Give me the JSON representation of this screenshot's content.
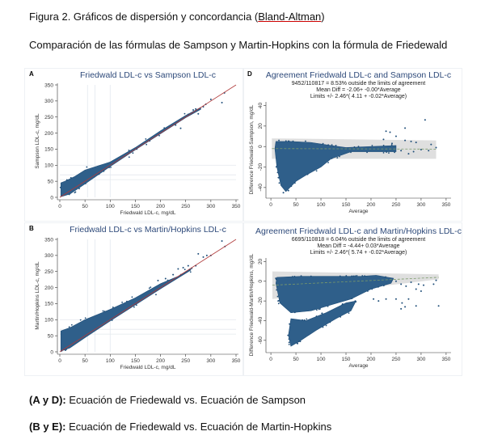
{
  "caption": {
    "figure_title_prefix": "Figura 2. Gráficos de dispersión y concordancia (",
    "figure_title_link": "Bland-Altman",
    "figure_title_suffix": ")",
    "subtitle": "Comparación de las fórmulas de Sampson y Martin-Hopkins con la fórmula de Friedewald"
  },
  "footer": {
    "line1_bold": "(A y D):",
    "line1_text": " Ecuación de Friedewald vs. Ecuación de Sampson",
    "line2_bold": " (B y E):",
    "line2_text": " Ecuación de Friedewald vs. Ecuación de Martin-Hopkins"
  },
  "colors": {
    "points": "#1f4e79",
    "cloud": "#2f5f8a",
    "title": "#2e4a7a",
    "identity_line": "#b03a3a",
    "band": "#d9d9d9",
    "mean_line": "#7a9a6a"
  },
  "chart_data": [
    {
      "id": "A",
      "type": "scatter",
      "panel_label": "A",
      "title": "Friedwald LDL-c vs Sampson LDL-c",
      "subtitle_lines": [],
      "xlabel": "Friedwald LDL-c, mg/dL",
      "ylabel": "Sampson LDL-c, mg/dL",
      "xlim": [
        0,
        350
      ],
      "ylim": [
        0,
        350
      ],
      "xticks": [
        0,
        50,
        100,
        150,
        200,
        250,
        300,
        350
      ],
      "yticks": [
        0,
        50,
        100,
        150,
        200,
        250,
        300,
        350
      ],
      "ref_x": [
        55,
        70,
        100
      ],
      "ref_y": [
        55,
        70,
        100
      ],
      "identity_line": [
        [
          0,
          0
        ],
        [
          350,
          350
        ]
      ],
      "cloud": [
        [
          [
            2,
            2
          ],
          [
            2,
            45
          ],
          [
            10,
            50
          ],
          [
            30,
            65
          ],
          [
            50,
            85
          ],
          [
            80,
            100
          ],
          [
            100,
            110
          ],
          [
            150,
            155
          ],
          [
            200,
            207
          ],
          [
            250,
            255
          ],
          [
            280,
            280
          ],
          [
            280,
            274
          ],
          [
            250,
            248
          ],
          [
            200,
            198
          ],
          [
            150,
            148
          ],
          [
            100,
            96
          ],
          [
            50,
            42
          ],
          [
            20,
            10
          ]
        ]
      ],
      "points": [
        [
          230,
          225
        ],
        [
          240,
          215
        ],
        [
          255,
          258
        ],
        [
          262,
          262
        ],
        [
          270,
          275
        ],
        [
          275,
          260
        ],
        [
          290,
          290
        ],
        [
          300,
          305
        ],
        [
          322,
          295
        ],
        [
          327,
          325
        ],
        [
          265,
          272
        ],
        [
          285,
          282
        ]
      ]
    },
    {
      "id": "D",
      "type": "scatter",
      "panel_label": "D",
      "title": "Agreement Friedwald LDL-c and Sampson LDL-c",
      "subtitle_lines": [
        "9452/110817 =   8.53% outside the limits of agreement",
        "Mean Diff = -2.06+ -0.00*Average",
        "Limits +/- 2.46*( 4.11 + -0.02*Average)"
      ],
      "xlabel": "Average",
      "ylabel": "Difference Friedwald-Sampson, mg/dL",
      "xlim": [
        -5,
        355
      ],
      "ylim": [
        -48,
        42
      ],
      "xticks": [
        0,
        50,
        100,
        150,
        200,
        250,
        300,
        350
      ],
      "yticks": [
        -40,
        -20,
        0,
        20,
        40
      ],
      "band": [
        [
          2,
          8
        ],
        [
          330,
          6
        ],
        [
          330,
          -12
        ],
        [
          2,
          -12
        ]
      ],
      "mean_line": [
        [
          2,
          -2
        ],
        [
          330,
          -2.5
        ]
      ],
      "cloud": [
        [
          [
            8,
            -2
          ],
          [
            10,
            5
          ],
          [
            40,
            5
          ],
          [
            80,
            4
          ],
          [
            120,
            1
          ],
          [
            150,
            -1
          ],
          [
            200,
            0
          ],
          [
            250,
            1
          ],
          [
            250,
            -5
          ],
          [
            200,
            -5
          ],
          [
            160,
            -5
          ],
          [
            120,
            -12
          ],
          [
            100,
            -20
          ],
          [
            70,
            -28
          ],
          [
            50,
            -34
          ],
          [
            30,
            -44
          ],
          [
            20,
            -38
          ],
          [
            12,
            -20
          ]
        ]
      ],
      "points": [
        [
          230,
          15
        ],
        [
          238,
          14
        ],
        [
          250,
          10
        ],
        [
          268,
          18
        ],
        [
          308,
          26
        ],
        [
          268,
          6
        ],
        [
          280,
          5
        ],
        [
          290,
          4
        ],
        [
          300,
          -3
        ],
        [
          315,
          -4
        ],
        [
          320,
          2
        ],
        [
          330,
          -1
        ],
        [
          260,
          -4
        ],
        [
          275,
          -7
        ],
        [
          285,
          -5
        ],
        [
          225,
          7
        ],
        [
          242,
          3
        ],
        [
          25,
          -45
        ],
        [
          35,
          -43
        ]
      ]
    },
    {
      "id": "B",
      "type": "scatter",
      "panel_label": "B",
      "title": "Friedwald LDL-c vs Martin/Hopkins LDL-c",
      "subtitle_lines": [],
      "xlabel": "Friedwald LDL-c, mg/dL",
      "ylabel": "Martin/Hopkins LDL-c, mg/dL",
      "xlim": [
        0,
        350
      ],
      "ylim": [
        0,
        350
      ],
      "xticks": [
        0,
        50,
        100,
        150,
        200,
        250,
        300,
        350
      ],
      "yticks": [
        0,
        50,
        100,
        150,
        200,
        250,
        300,
        350
      ],
      "ref_x": [
        55,
        70,
        100
      ],
      "ref_y": [
        55,
        70,
        100
      ],
      "identity_line": [
        [
          0,
          0
        ],
        [
          350,
          350
        ]
      ],
      "cloud": [
        [
          [
            2,
            2
          ],
          [
            2,
            65
          ],
          [
            20,
            75
          ],
          [
            50,
            100
          ],
          [
            100,
            132
          ],
          [
            150,
            168
          ],
          [
            200,
            212
          ],
          [
            235,
            235
          ],
          [
            260,
            258
          ],
          [
            260,
            254
          ],
          [
            200,
            196
          ],
          [
            150,
            146
          ],
          [
            100,
            96
          ],
          [
            50,
            44
          ],
          [
            20,
            12
          ]
        ]
      ],
      "points": [
        [
          195,
          222
        ],
        [
          210,
          228
        ],
        [
          225,
          240
        ],
        [
          235,
          258
        ],
        [
          245,
          262
        ],
        [
          255,
          268
        ],
        [
          262,
          260
        ],
        [
          275,
          305
        ],
        [
          285,
          295
        ],
        [
          292,
          300
        ],
        [
          300,
          300
        ],
        [
          322,
          345
        ],
        [
          328,
          328
        ],
        [
          270,
          268
        ]
      ]
    },
    {
      "id": "E",
      "type": "scatter",
      "panel_label": "",
      "title": "Agreement Friedwald LDL-c and Martin/Hopkins LDL-c",
      "subtitle_lines": [
        "6695/110818 =   6.04% outside the limits of agreement",
        "Mean Diff = -4.44+  0.03*Average",
        "Limits +/- 2.46*( 5.74 + -0.02*Average)"
      ],
      "xlabel": "Average",
      "ylabel": "Difference Friedwald-Martin/Hopkins, mg/dL",
      "xlim": [
        -5,
        355
      ],
      "ylim": [
        -70,
        22
      ],
      "xticks": [
        0,
        50,
        100,
        150,
        200,
        250,
        300,
        350
      ],
      "yticks": [
        -60,
        -40,
        -20,
        0,
        20
      ],
      "band": [
        [
          3,
          10
        ],
        [
          335,
          7
        ],
        [
          335,
          2
        ],
        [
          3,
          -18
        ]
      ],
      "mean_line": [
        [
          3,
          -4
        ],
        [
          335,
          4
        ]
      ],
      "cloud": [
        [
          [
            10,
            -2
          ],
          [
            12,
            4
          ],
          [
            60,
            5
          ],
          [
            120,
            5
          ],
          [
            180,
            5
          ],
          [
            210,
            6
          ],
          [
            245,
            3
          ],
          [
            240,
            -2
          ],
          [
            200,
            -8
          ],
          [
            160,
            -18
          ],
          [
            120,
            -24
          ],
          [
            80,
            -30
          ],
          [
            40,
            -32
          ],
          [
            18,
            -22
          ]
        ],
        [
          [
            40,
            -38
          ],
          [
            70,
            -40
          ],
          [
            110,
            -32
          ],
          [
            150,
            -22
          ],
          [
            170,
            -20
          ],
          [
            160,
            -30
          ],
          [
            130,
            -38
          ],
          [
            90,
            -50
          ],
          [
            60,
            -60
          ],
          [
            40,
            -66
          ],
          [
            35,
            -55
          ]
        ]
      ],
      "points": [
        [
          250,
          0
        ],
        [
          260,
          -3
        ],
        [
          270,
          -5
        ],
        [
          280,
          -1
        ],
        [
          290,
          -8
        ],
        [
          295,
          -3
        ],
        [
          305,
          -4
        ],
        [
          300,
          -10
        ],
        [
          250,
          -18
        ],
        [
          262,
          -22
        ],
        [
          275,
          -18
        ],
        [
          290,
          -25
        ],
        [
          335,
          -25
        ],
        [
          205,
          -18
        ],
        [
          215,
          -20
        ],
        [
          230,
          -18
        ],
        [
          260,
          -28
        ],
        [
          268,
          -26
        ],
        [
          325,
          -3
        ],
        [
          330,
          1
        ]
      ]
    }
  ]
}
